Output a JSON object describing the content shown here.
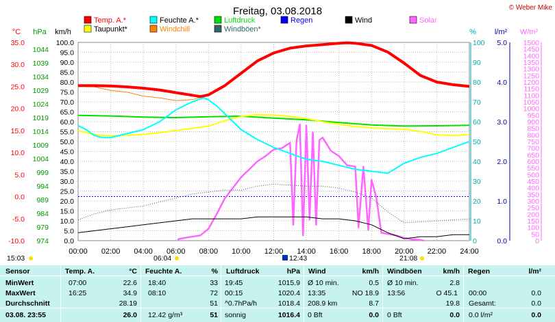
{
  "title": "Freitag, 03.08.2018",
  "credit": "© Weber Mike",
  "colors": {
    "temp": "#ff0000",
    "dewpoint": "#ffff00",
    "humidity": "#00ffff",
    "windchill": "#ff8000",
    "pressure": "#00e000",
    "gusts": "#336666",
    "rain": "#0000ff",
    "wind": "#000000",
    "solar": "#ff66ff",
    "axis_temp": "#ff0000",
    "axis_hpa": "#009900",
    "axis_hum": "#00aaaa",
    "axis_rain": "#0000aa",
    "axis_solar": "#ff66ff",
    "stats_bg": "#c6f3f0"
  },
  "axis_units": {
    "temp": "°C",
    "pressure": "hPa",
    "wind": "km/h",
    "humidity": "%",
    "rain": "l/m²",
    "solar": "W/m²"
  },
  "legend": [
    {
      "label": "Temp. A.*",
      "color": "#ff0000"
    },
    {
      "label": "Feuchte A.*",
      "color": "#00ffff"
    },
    {
      "label": "Luftdruck",
      "color": "#00e000"
    },
    {
      "label": "Regen",
      "color": "#0000ff"
    },
    {
      "label": "Wind",
      "color": "#000000"
    },
    {
      "label": "Solar",
      "color": "#ff66ff"
    },
    {
      "label": "Taupunkt*",
      "color": "#ffff00"
    },
    {
      "label": "Windchill",
      "color": "#ff8000"
    },
    {
      "label": "Windböen*",
      "color": "#336666"
    }
  ],
  "sun_markers": {
    "left": "15:03",
    "sunrise": "06:04",
    "noon": "12:43",
    "sunset": "21:08"
  },
  "chart_data": {
    "type": "line",
    "x_ticks": [
      "00:00",
      "02:00",
      "04:00",
      "06:00",
      "08:00",
      "10:00",
      "12:00",
      "14:00",
      "16:00",
      "18:00",
      "20:00",
      "22:00",
      "24:00"
    ],
    "x_range": [
      0,
      24
    ],
    "axes": {
      "temp_C": {
        "range": [
          -10,
          35
        ],
        "ticks": [
          "35.0",
          "30.0",
          "25.0",
          "20.0",
          "15.0",
          "10.0",
          "5.0",
          "0.0",
          "-5.0",
          "-10.0"
        ]
      },
      "pressure_hPa": {
        "range": [
          974,
          1046.5
        ],
        "ticks": [
          "1044",
          "1039",
          "1034",
          "1029",
          "1024",
          "1019",
          "1014",
          "1009",
          "1004",
          "999",
          "994",
          "989",
          "984",
          "979",
          "974"
        ]
      },
      "wind_kmh": {
        "range": [
          0,
          100
        ],
        "ticks": [
          "100.0",
          "95.0",
          "90.0",
          "85.0",
          "80.0",
          "75.0",
          "70.0",
          "65.0",
          "60.0",
          "55.0",
          "50.0",
          "45.0",
          "40.0",
          "35.0",
          "30.0",
          "25.0",
          "20.0",
          "15.0",
          "10.0",
          "5.0",
          "0.0"
        ]
      },
      "humidity_pct": {
        "range": [
          0,
          100
        ],
        "ticks": [
          "100",
          "90",
          "80",
          "70",
          "60",
          "50",
          "40",
          "30",
          "20",
          "10",
          "0"
        ]
      },
      "rain_lm2": {
        "range": [
          0,
          5
        ],
        "ticks": [
          "5.0",
          "4.0",
          "3.0",
          "2.0",
          "1.0",
          "0.0"
        ]
      },
      "solar_wm2": {
        "range": [
          0,
          1500
        ],
        "ticks": [
          "1500",
          "1450",
          "1400",
          "1350",
          "1300",
          "1250",
          "1200",
          "1150",
          "1100",
          "1050",
          "1000",
          "950",
          "900",
          "850",
          "800",
          "750",
          "700",
          "650",
          "600",
          "550",
          "500",
          "450",
          "400",
          "350",
          "300",
          "250",
          "200",
          "150",
          "100",
          "50",
          "0"
        ]
      }
    },
    "series": [
      {
        "name": "Temp. A.*",
        "axis": "temp_C",
        "x": [
          0,
          1,
          2,
          3,
          4,
          5,
          6,
          7,
          7.5,
          8,
          9,
          10,
          11,
          12,
          13,
          14,
          15,
          16,
          16.5,
          17,
          18,
          19,
          20,
          21,
          22,
          23,
          24
        ],
        "y": [
          25.2,
          25.2,
          25.1,
          24.9,
          24.6,
          24.2,
          23.6,
          23.0,
          22.7,
          23.1,
          25.2,
          28.0,
          30.8,
          32.6,
          33.7,
          34.2,
          34.5,
          34.8,
          34.9,
          34.8,
          34.3,
          32.8,
          30.3,
          27.5,
          26.0,
          25.4,
          25.0
        ]
      },
      {
        "name": "Windchill",
        "axis": "temp_C",
        "x": [
          0,
          1,
          2,
          3,
          4,
          5,
          6,
          7,
          7.5,
          8,
          9,
          10,
          11,
          12,
          13,
          14,
          15,
          16,
          16.5,
          17,
          18,
          19,
          20,
          21,
          22,
          23,
          24
        ],
        "y": [
          25.0,
          24.9,
          24.1,
          23.7,
          22.8,
          22.4,
          21.8,
          22.0,
          22.5,
          22.9,
          24.9,
          27.8,
          30.6,
          32.4,
          33.5,
          34.0,
          34.4,
          34.7,
          34.8,
          34.6,
          34.1,
          32.6,
          30.0,
          27.2,
          25.8,
          25.2,
          24.8
        ]
      },
      {
        "name": "Taupunkt*",
        "axis": "temp_C",
        "x": [
          0,
          1,
          2,
          3,
          4,
          5,
          6,
          7,
          8,
          9,
          10,
          11,
          12,
          13,
          14,
          15,
          16,
          17,
          18,
          19,
          20,
          21,
          22,
          23,
          24
        ],
        "y": [
          15.0,
          14.0,
          13.8,
          13.9,
          14.1,
          14.5,
          15.0,
          15.5,
          16.0,
          17.2,
          18.2,
          18.6,
          18.5,
          18.2,
          17.7,
          17.0,
          16.4,
          15.9,
          15.6,
          15.4,
          15.3,
          14.8,
          14.0,
          13.9,
          14.0
        ]
      },
      {
        "name": "Feuchte A.*",
        "axis": "humidity_pct",
        "x": [
          0,
          0.5,
          1,
          1.5,
          2,
          3,
          4,
          5,
          5.5,
          6,
          7,
          7.7,
          8,
          8.5,
          9,
          10,
          11,
          12,
          13,
          14,
          15,
          16,
          17,
          18,
          19,
          20,
          21,
          22,
          23,
          24
        ],
        "y": [
          58,
          56,
          53,
          52,
          52,
          54,
          56,
          60,
          63,
          66,
          70,
          72,
          71,
          68,
          64,
          56,
          51,
          47,
          44,
          41,
          40,
          38,
          36,
          35,
          34,
          39,
          42,
          44,
          47,
          50
        ]
      },
      {
        "name": "Luftdruck",
        "axis": "pressure_hPa",
        "x": [
          0,
          2,
          4,
          6,
          8,
          10,
          12,
          14,
          16,
          18,
          20,
          22,
          24
        ],
        "y": [
          1019.8,
          1019.6,
          1019.2,
          1019.0,
          1019.3,
          1019.5,
          1018.8,
          1018.2,
          1017.2,
          1016.3,
          1015.9,
          1016.0,
          1016.2
        ]
      },
      {
        "name": "Windböen*",
        "axis": "wind_kmh",
        "x": [
          0,
          1,
          2,
          3,
          4,
          5,
          6,
          7,
          8,
          9,
          10,
          11,
          12,
          13,
          14,
          15,
          16,
          17,
          18,
          19,
          20,
          21,
          22,
          23,
          24
        ],
        "y": [
          10.5,
          13.5,
          15.5,
          16.5,
          17.5,
          19.5,
          21.5,
          23.5,
          24.5,
          25.5,
          25.5,
          27.5,
          28.5,
          28.0,
          27.5,
          27.5,
          26.5,
          24.5,
          21.5,
          14.5,
          9.0,
          9.5,
          10.0,
          10.5,
          11.0
        ]
      },
      {
        "name": "Wind",
        "axis": "wind_kmh",
        "x": [
          0,
          1,
          2,
          3,
          4,
          5,
          6,
          7,
          8,
          9,
          10,
          11,
          12,
          13,
          14,
          15,
          16,
          17,
          18,
          19,
          20,
          21,
          22,
          23,
          24
        ],
        "y": [
          4,
          5,
          6,
          7,
          8,
          9,
          10,
          11,
          11,
          11,
          11,
          12,
          12,
          12,
          12,
          11,
          11,
          10,
          8,
          4,
          1,
          2,
          2,
          3,
          3
        ]
      },
      {
        "name": "Solar",
        "axis": "solar_wm2",
        "x": [
          6.1,
          6.5,
          7,
          7.5,
          8,
          8.5,
          9,
          9.5,
          10,
          10.5,
          11,
          11.5,
          12,
          12.5,
          13,
          13.2,
          13.4,
          13.6,
          13.8,
          14,
          14.2,
          14.4,
          14.6,
          14.8,
          15,
          15.5,
          16,
          16.5,
          17,
          17.2,
          17.5,
          17.8,
          18,
          18.3,
          18.6,
          19,
          19.5,
          20,
          20.5,
          21,
          21.2
        ],
        "y": [
          10,
          20,
          30,
          40,
          90,
          200,
          320,
          400,
          480,
          540,
          600,
          640,
          690,
          700,
          740,
          120,
          760,
          880,
          40,
          870,
          160,
          820,
          120,
          760,
          780,
          680,
          640,
          570,
          560,
          100,
          560,
          80,
          460,
          320,
          60,
          50,
          40,
          20,
          10,
          5,
          0
        ]
      }
    ]
  },
  "stats": {
    "headers": {
      "sensor": "Sensor",
      "temp": "Temp. A.",
      "temp_unit": "°C",
      "hum": "Feuchte A.",
      "hum_unit": "%",
      "press": "Luftdruck",
      "press_unit": "hPa",
      "wind": "Wind",
      "wind_unit": "km/h",
      "gust": "Windböen",
      "gust_unit": "km/h",
      "rain": "Regen",
      "rain_unit": "l/m²"
    },
    "rows": [
      {
        "label": "MinWert",
        "temp_t": "07:00",
        "temp_v": "22.6",
        "hum_t": "18:40",
        "hum_v": "33",
        "press_t": "19:45",
        "press_v": "1015.9",
        "wind_t": "Ø 10 min.",
        "wind_v": "0.5",
        "gust_t": "Ø 10 min.",
        "gust_v": "2.8",
        "rain_t": "",
        "rain_v": ""
      },
      {
        "label": "MaxWert",
        "temp_t": "16:25",
        "temp_v": "34.9",
        "hum_t": "08:10",
        "hum_v": "72",
        "press_t": "00:15",
        "press_v": "1020.4",
        "wind_t": "13:35",
        "wind_m": "NO 18.9",
        "wind_v": "",
        "gust_t": "13:56",
        "gust_m": "O 45.1",
        "gust_v": "",
        "rain_t": "00:00",
        "rain_v": "0.0"
      },
      {
        "label": "Durchschnitt",
        "temp_t": "",
        "temp_v": "28.19",
        "hum_t": "",
        "hum_v": "51",
        "press_t": "^0.7hPa/h",
        "press_v": "1018.4",
        "wind_t": "208.9 km",
        "wind_v": "8.7",
        "gust_t": "",
        "gust_v": "19.8",
        "rain_t": "Gesamt:",
        "rain_v": "0.0"
      },
      {
        "label": "03.08. 23:55",
        "temp_t": "",
        "temp_v": "26.0",
        "hum_t": "12.42 g/m³",
        "hum_v": "51",
        "press_t": "sonnig",
        "press_v": "1016.4",
        "wind_t": "0 Bft",
        "wind_v": "0.0",
        "gust_t": "0 Bft",
        "gust_v": "0.0",
        "rain_t": "0.0 l/m²",
        "rain_v": "0.0"
      }
    ]
  }
}
